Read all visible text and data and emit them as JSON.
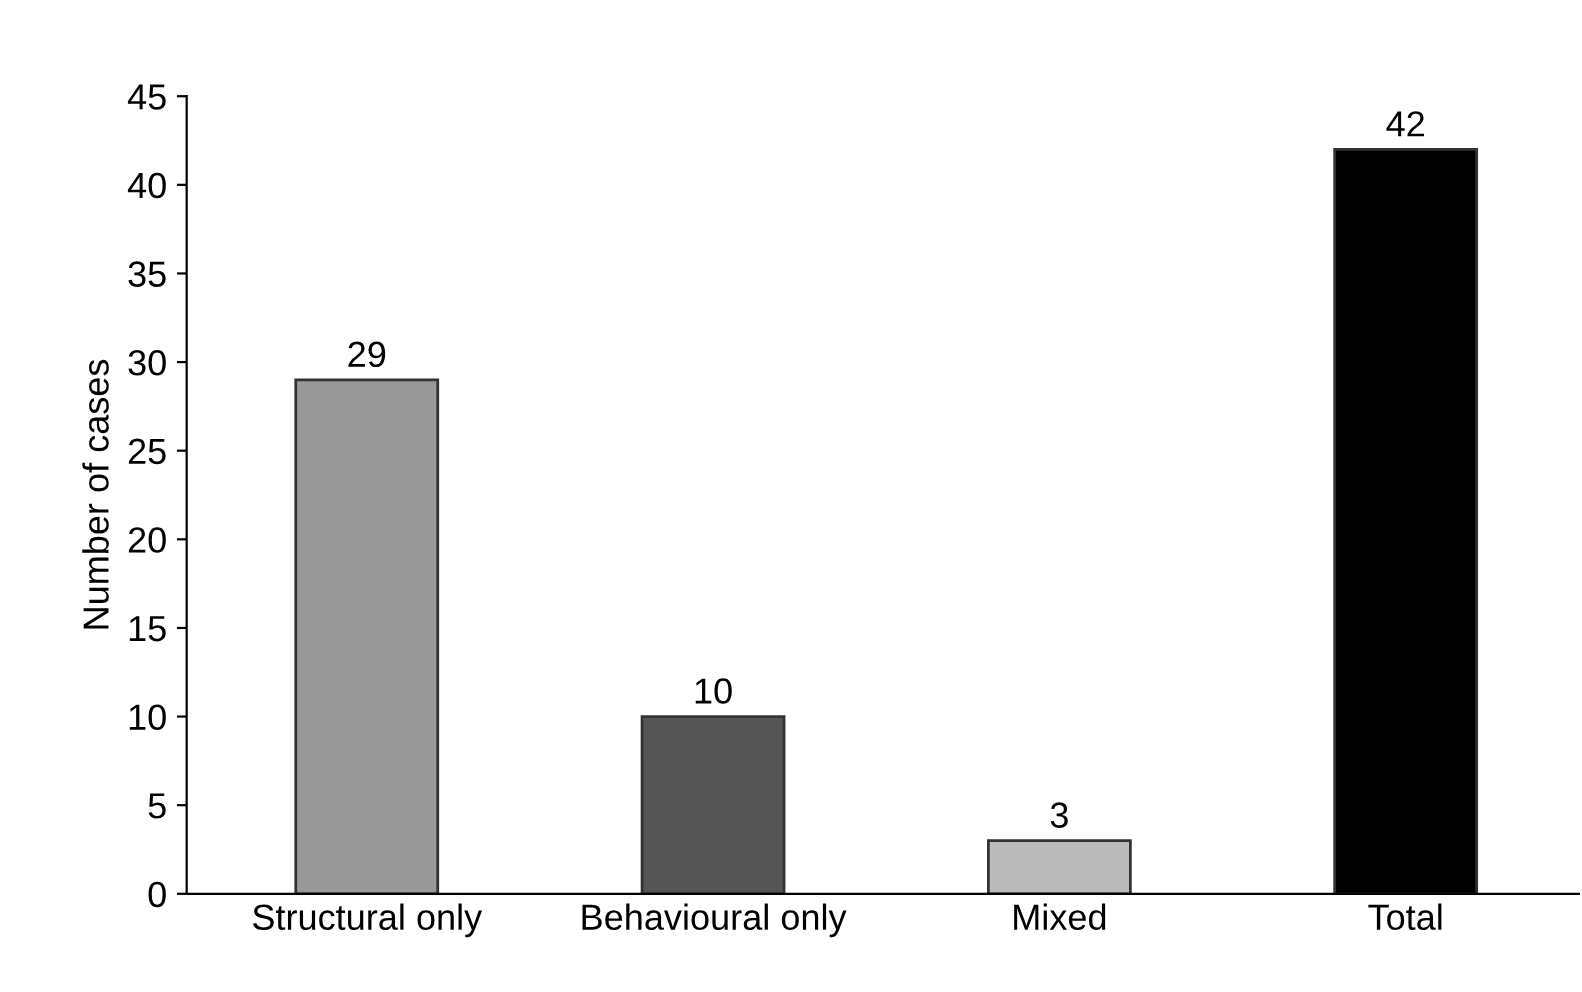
{
  "chart_data": {
    "type": "bar",
    "ylabel": "Number of cases",
    "categories": [
      "Structural only",
      "Behavioural only",
      "Mixed",
      "Total"
    ],
    "values": [
      29,
      10,
      3,
      42
    ],
    "colors": [
      "#999999",
      "#555555",
      "#bbbbbb",
      "#000000"
    ],
    "ylim": [
      0,
      45
    ],
    "yticks": [
      0,
      5,
      10,
      15,
      20,
      25,
      30,
      35,
      40,
      45
    ],
    "data_labels": true,
    "grid": false
  }
}
